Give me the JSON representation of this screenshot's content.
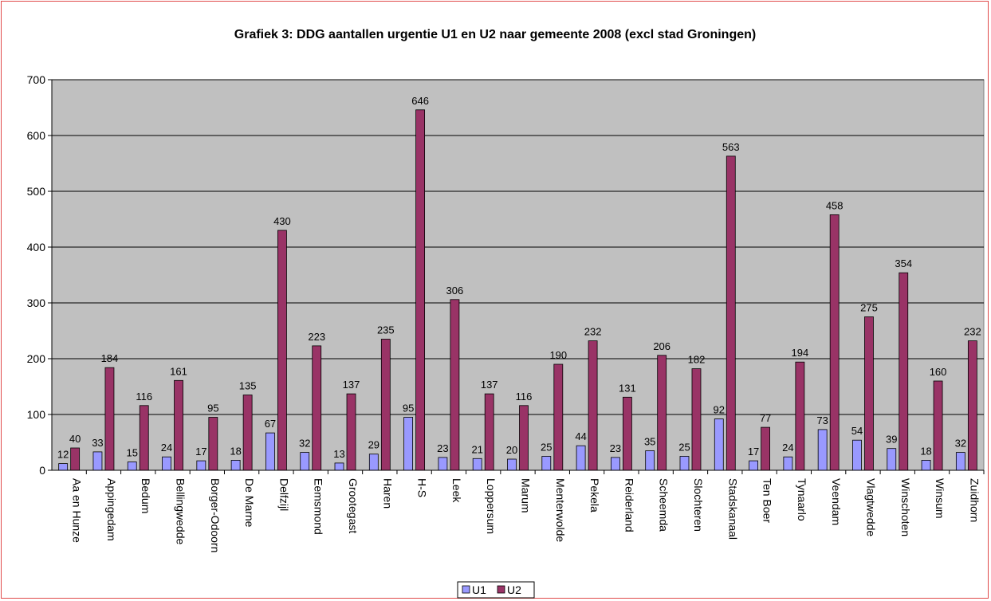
{
  "chart_data": {
    "type": "bar",
    "title": "Grafiek 3: DDG aantallen urgentie U1 en U2 naar gemeente 2008 (excl stad Groningen)",
    "xlabel": "",
    "ylabel": "",
    "ylim": [
      0,
      700
    ],
    "yticks": [
      0,
      100,
      200,
      300,
      400,
      500,
      600,
      700
    ],
    "grid": true,
    "legend": "bottom",
    "categories": [
      "Aa en Hunze",
      "Appingedam",
      "Bedum",
      "Bellingwedde",
      "Borger-Odoorn",
      "De Marne",
      "Delfzijl",
      "Eemsmond",
      "Grootegast",
      "Haren",
      "H-S",
      "Leek",
      "Loppersum",
      "Marum",
      "Menterwolde",
      "Pekela",
      "Reiderland",
      "Scheemda",
      "Slochteren",
      "Stadskanaal",
      "Ten Boer",
      "Tynaarlo",
      "Veendam",
      "Vlagtwedde",
      "Winschoten",
      "Winsum",
      "Zuidhorn"
    ],
    "series": [
      {
        "name": "U1",
        "color": "#9999ff",
        "values": [
          12,
          33,
          15,
          24,
          17,
          18,
          67,
          32,
          13,
          29,
          95,
          23,
          21,
          20,
          25,
          44,
          23,
          35,
          25,
          92,
          17,
          24,
          73,
          54,
          39,
          18,
          32
        ]
      },
      {
        "name": "U2",
        "color": "#993366",
        "values": [
          40,
          184,
          116,
          161,
          95,
          135,
          430,
          223,
          137,
          235,
          646,
          306,
          137,
          116,
          190,
          232,
          131,
          206,
          182,
          563,
          77,
          194,
          458,
          275,
          354,
          160,
          232
        ]
      }
    ],
    "plot_background": "#c0c0c0"
  }
}
